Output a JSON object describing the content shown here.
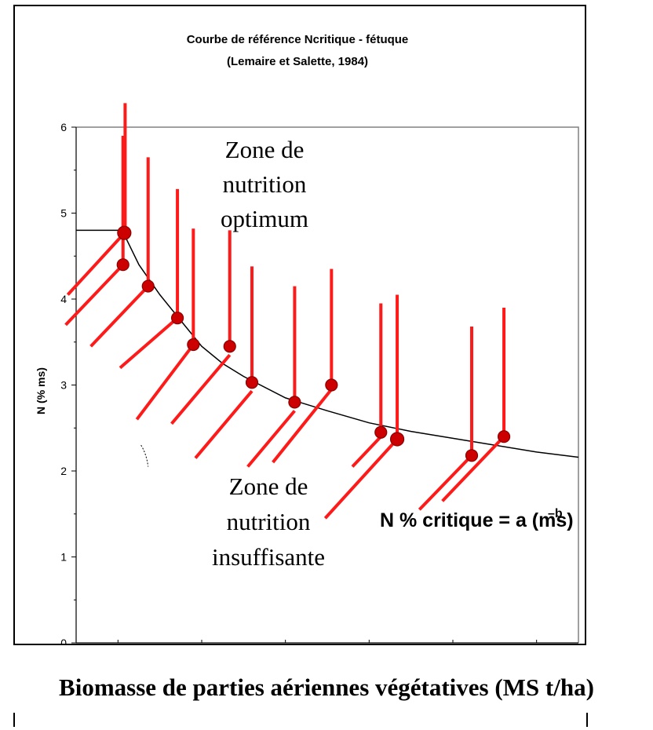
{
  "chart_data": {
    "type": "scatter",
    "title": "Courbe de référence Ncritique - fétuque",
    "subtitle": "(Lemaire et Salette, 1984)",
    "xlabel": "Biomasse de parties aériennes végétatives (MS t/ha)",
    "ylabel": "N (% ms)",
    "xlim": [
      0,
      12
    ],
    "ylim": [
      0,
      6
    ],
    "x_ticks": [
      "0",
      "2",
      "4",
      "6",
      "8",
      "10",
      "12"
    ],
    "y_ticks": [
      "0",
      "1",
      "2",
      "3",
      "4",
      "5",
      "6"
    ],
    "grid": false,
    "annotations": {
      "zone_optimum": [
        "Zone de",
        "nutrition",
        "optimum"
      ],
      "zone_insuffisante": [
        "Zone de",
        "nutrition",
        "insuffisante"
      ],
      "formula_main": "N % critique = a (ms)",
      "formula_exponent": "–b"
    },
    "curve": {
      "flat_level": 4.8,
      "x": [
        0,
        1,
        1.2,
        1.5,
        2,
        2.5,
        3,
        3.5,
        4,
        5,
        6,
        7,
        8,
        9,
        10,
        11,
        12
      ],
      "y": [
        4.8,
        4.8,
        4.7,
        4.4,
        4.05,
        3.75,
        3.45,
        3.25,
        3.1,
        2.85,
        2.7,
        2.56,
        2.46,
        2.38,
        2.3,
        2.22,
        2.16
      ]
    },
    "points": [
      {
        "x": 1.15,
        "y": 4.77
      },
      {
        "x": 1.12,
        "y": 4.4
      },
      {
        "x": 1.72,
        "y": 4.15
      },
      {
        "x": 2.42,
        "y": 3.78
      },
      {
        "x": 2.8,
        "y": 3.47
      },
      {
        "x": 3.67,
        "y": 3.45
      },
      {
        "x": 4.2,
        "y": 3.03
      },
      {
        "x": 5.22,
        "y": 2.8
      },
      {
        "x": 6.1,
        "y": 3.0
      },
      {
        "x": 7.28,
        "y": 2.45
      },
      {
        "x": 7.67,
        "y": 2.37
      },
      {
        "x": 9.45,
        "y": 2.18
      },
      {
        "x": 10.22,
        "y": 2.4
      }
    ],
    "vertical_bars": [
      {
        "x": 1.17,
        "y1": 4.8,
        "y2": 6.28
      },
      {
        "x": 1.12,
        "y1": 4.4,
        "y2": 5.9
      },
      {
        "x": 1.72,
        "y1": 4.15,
        "y2": 5.65
      },
      {
        "x": 2.42,
        "y1": 3.78,
        "y2": 5.28
      },
      {
        "x": 2.8,
        "y1": 3.47,
        "y2": 4.82
      },
      {
        "x": 3.67,
        "y1": 3.45,
        "y2": 4.8
      },
      {
        "x": 4.2,
        "y1": 3.03,
        "y2": 4.38
      },
      {
        "x": 5.22,
        "y1": 2.8,
        "y2": 4.15
      },
      {
        "x": 6.1,
        "y1": 3.0,
        "y2": 4.35
      },
      {
        "x": 7.28,
        "y1": 2.45,
        "y2": 3.95
      },
      {
        "x": 7.67,
        "y1": 2.37,
        "y2": 4.05
      },
      {
        "x": 9.45,
        "y1": 2.18,
        "y2": 3.68
      },
      {
        "x": 10.22,
        "y1": 2.4,
        "y2": 3.9
      }
    ],
    "diagonal_bars": [
      {
        "x1": 1.12,
        "y1": 4.75,
        "x2": -0.2,
        "y2": 4.05
      },
      {
        "x1": 1.12,
        "y1": 4.4,
        "x2": -0.25,
        "y2": 3.7
      },
      {
        "x1": 1.72,
        "y1": 4.15,
        "x2": 0.35,
        "y2": 3.45
      },
      {
        "x1": 2.42,
        "y1": 3.78,
        "x2": 1.05,
        "y2": 3.2
      },
      {
        "x1": 2.8,
        "y1": 3.47,
        "x2": 1.45,
        "y2": 2.6
      },
      {
        "x1": 3.67,
        "y1": 3.35,
        "x2": 2.28,
        "y2": 2.55
      },
      {
        "x1": 4.2,
        "y1": 2.93,
        "x2": 2.85,
        "y2": 2.15
      },
      {
        "x1": 5.22,
        "y1": 2.7,
        "x2": 4.1,
        "y2": 2.05
      },
      {
        "x1": 6.1,
        "y1": 2.95,
        "x2": 4.7,
        "y2": 2.1
      },
      {
        "x1": 7.28,
        "y1": 2.4,
        "x2": 6.6,
        "y2": 2.05
      },
      {
        "x1": 7.67,
        "y1": 2.37,
        "x2": 5.95,
        "y2": 1.45
      },
      {
        "x1": 9.45,
        "y1": 2.18,
        "x2": 8.2,
        "y2": 1.55
      },
      {
        "x1": 10.22,
        "y1": 2.4,
        "x2": 8.75,
        "y2": 1.65
      }
    ],
    "colors": {
      "points": "#cc0000",
      "point_stroke": "#8b0000",
      "bars": "#ff1a1a",
      "curve": "#000000",
      "plot_border": "#808080"
    }
  }
}
